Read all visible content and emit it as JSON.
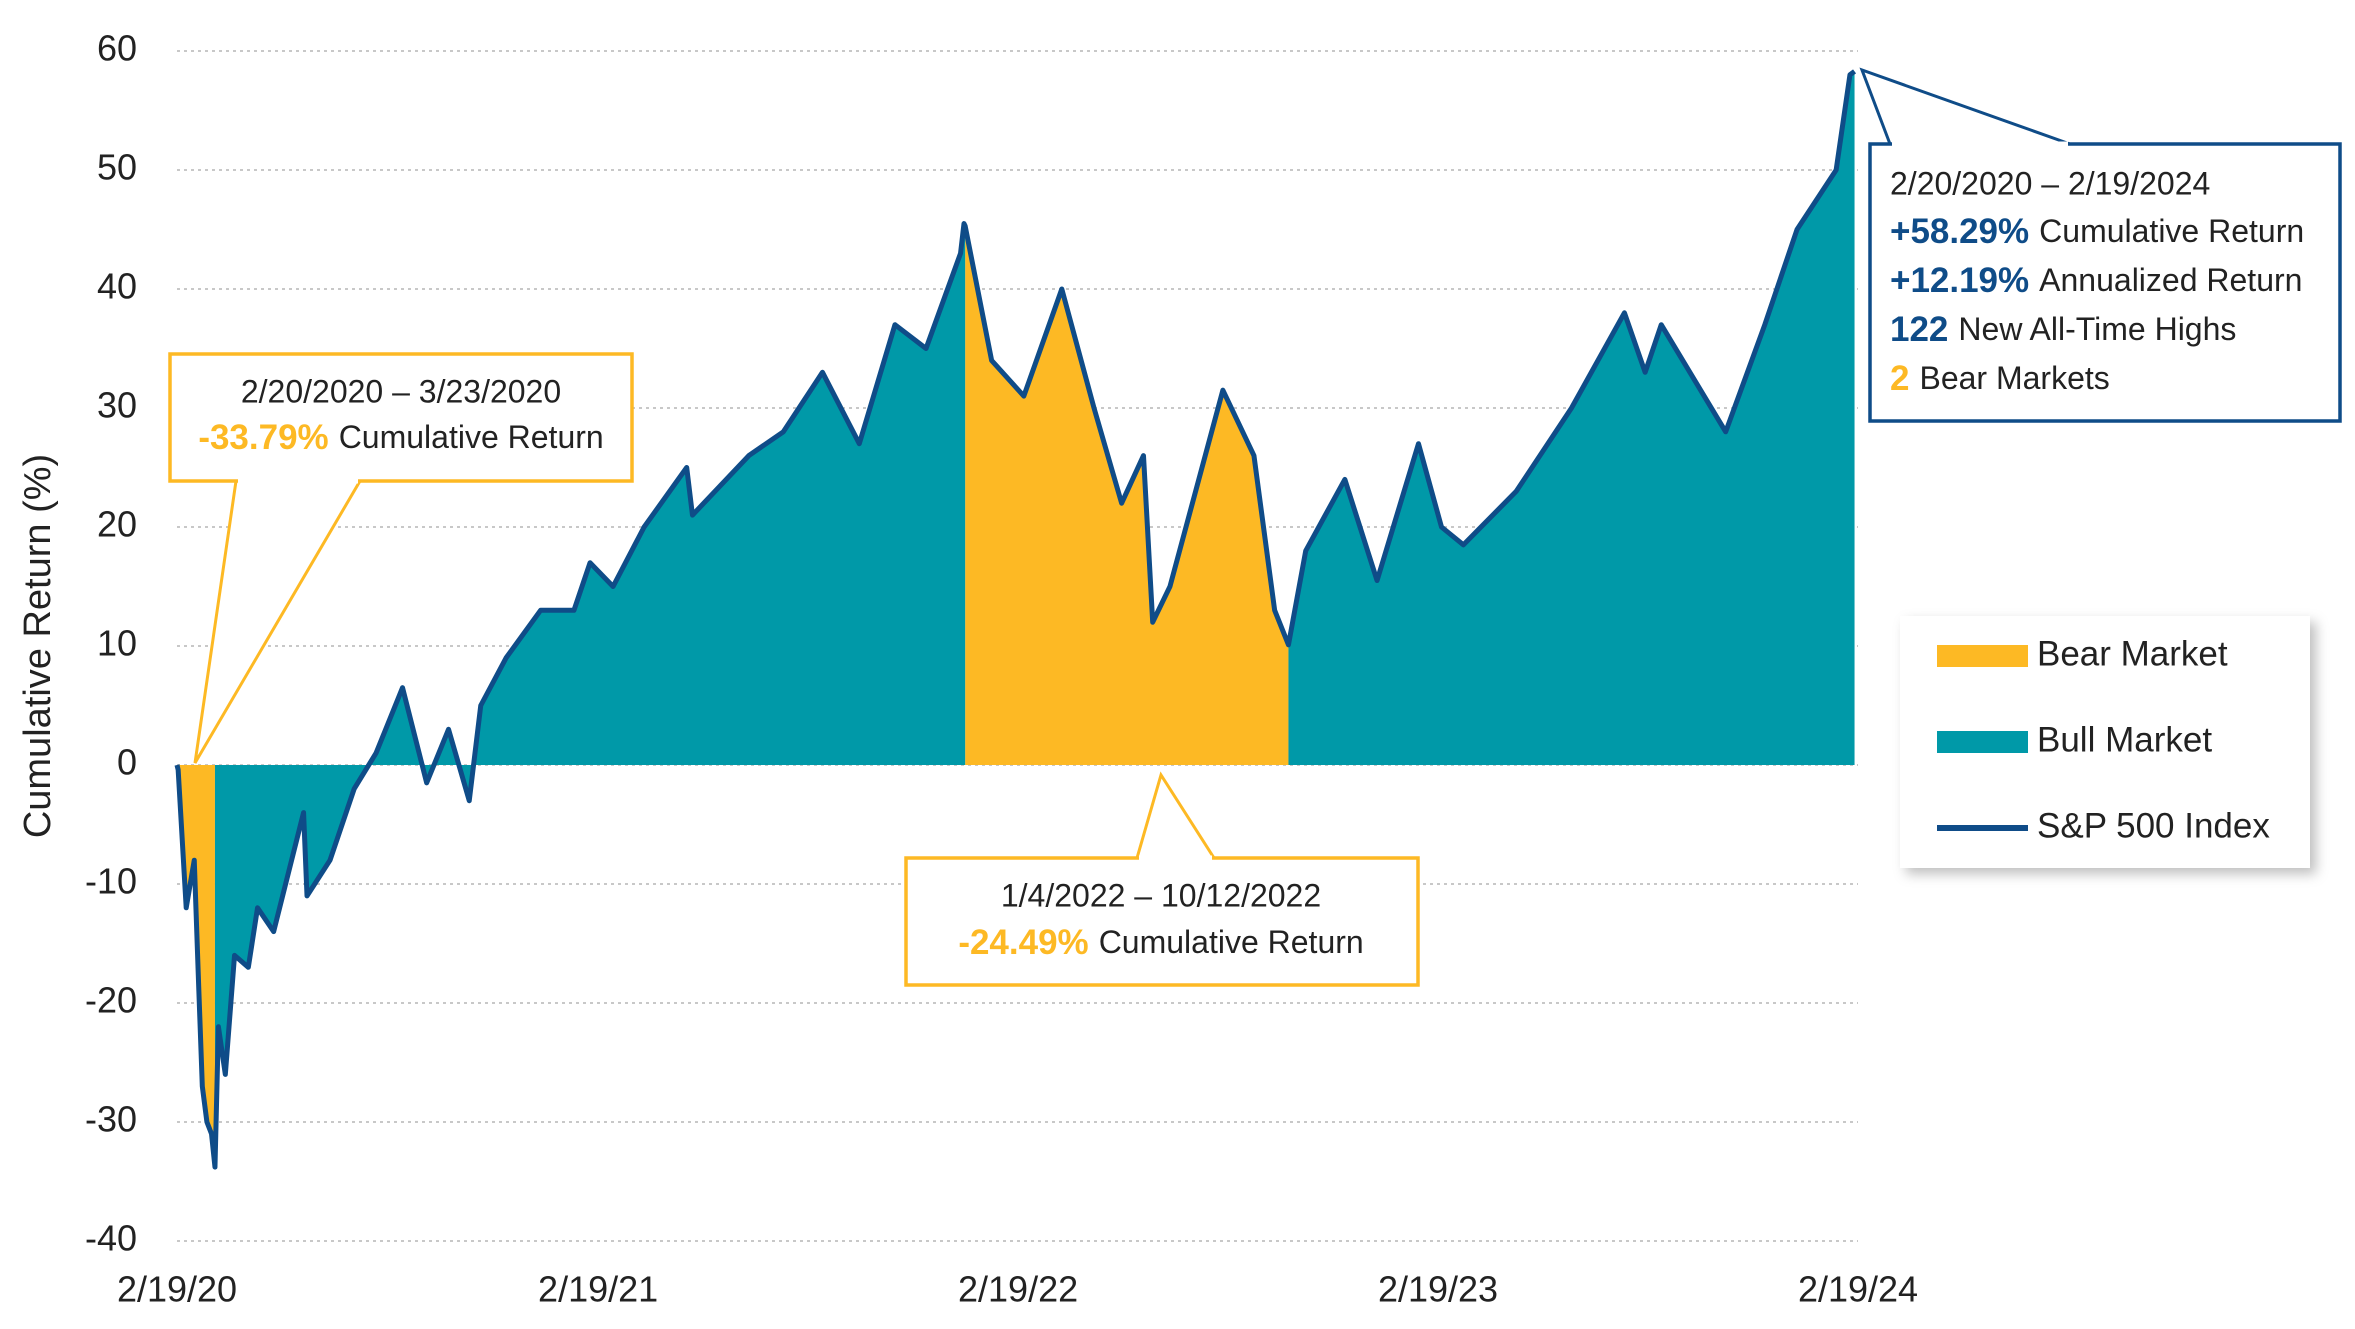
{
  "chart_data": {
    "type": "area",
    "y_label": "Cumulative Return (%)",
    "x": [
      "2020-02-19",
      "2020-02-20",
      "2020-02-27",
      "2020-03-05",
      "2020-03-09",
      "2020-03-12",
      "2020-03-16",
      "2020-03-20",
      "2020-03-23",
      "2020-03-26",
      "2020-04-01",
      "2020-04-09",
      "2020-04-21",
      "2020-04-29",
      "2020-05-13",
      "2020-06-08",
      "2020-06-11",
      "2020-07-01",
      "2020-07-22",
      "2020-08-10",
      "2020-09-02",
      "2020-09-23",
      "2020-10-12",
      "2020-10-30",
      "2020-11-09",
      "2020-12-01",
      "2020-12-31",
      "2021-01-29",
      "2021-02-12",
      "2021-03-04",
      "2021-03-31",
      "2021-05-07",
      "2021-05-12",
      "2021-06-30",
      "2021-07-30",
      "2021-09-02",
      "2021-10-04",
      "2021-11-04",
      "2021-12-01",
      "2021-12-31",
      "2022-01-03",
      "2022-01-04",
      "2022-01-27",
      "2022-02-24",
      "2022-03-29",
      "2022-04-26",
      "2022-05-20",
      "2022-06-08",
      "2022-06-16",
      "2022-07-01",
      "2022-08-16",
      "2022-09-12",
      "2022-09-30",
      "2022-10-12",
      "2022-10-27",
      "2022-11-30",
      "2022-12-28",
      "2023-02-02",
      "2023-02-22",
      "2023-03-13",
      "2023-04-28",
      "2023-06-15",
      "2023-07-31",
      "2023-08-18",
      "2023-09-01",
      "2023-10-27",
      "2023-11-30",
      "2023-12-28",
      "2024-01-31",
      "2024-02-12",
      "2024-02-16"
    ],
    "series": [
      {
        "name": "Bear Market",
        "color": "#fdb924",
        "kind": "area",
        "values": [
          null,
          -0.4,
          -12,
          -8,
          -19,
          -27,
          -30,
          -31,
          -33.79,
          null,
          null,
          null,
          null,
          null,
          null,
          null,
          null,
          null,
          null,
          null,
          null,
          null,
          null,
          null,
          null,
          null,
          null,
          null,
          null,
          null,
          null,
          null,
          null,
          null,
          null,
          null,
          null,
          null,
          null,
          null,
          null,
          45.3,
          34,
          31,
          40,
          30,
          22,
          26,
          12,
          15,
          31.5,
          26,
          13,
          10.1,
          null,
          null,
          null,
          null,
          null,
          null,
          null,
          null,
          null,
          null,
          null,
          null,
          null,
          null,
          null,
          null,
          null
        ]
      },
      {
        "name": "Bull Market",
        "color": "#0099a8",
        "kind": "area",
        "values": [
          null,
          null,
          null,
          null,
          null,
          null,
          null,
          null,
          -33.79,
          -22,
          -26,
          -16,
          -17,
          -12,
          -14,
          -4,
          -11,
          -8,
          -2,
          1,
          6.5,
          -1.5,
          3,
          -3,
          5,
          9,
          13,
          13,
          17,
          15,
          20,
          25,
          21,
          26,
          28,
          33,
          27,
          37,
          35,
          43,
          45.5,
          45.3,
          null,
          null,
          null,
          null,
          null,
          null,
          null,
          null,
          null,
          null,
          null,
          10.1,
          18,
          24,
          15.5,
          27,
          20,
          18.5,
          23,
          30,
          38,
          33,
          37,
          28,
          37,
          45,
          50,
          58,
          58.29
        ]
      },
      {
        "name": "S&P 500 Index",
        "color": "#0f4c88",
        "kind": "line",
        "values": [
          0,
          -0.4,
          -12,
          -8,
          -19,
          -27,
          -30,
          -31,
          -33.79,
          -22,
          -26,
          -16,
          -17,
          -12,
          -14,
          -4,
          -11,
          -8,
          -2,
          1,
          6.5,
          -1.5,
          3,
          -3,
          5,
          9,
          13,
          13,
          17,
          15,
          20,
          25,
          21,
          26,
          28,
          33,
          27,
          37,
          35,
          43,
          45.5,
          45.3,
          34,
          31,
          40,
          30,
          22,
          26,
          12,
          15,
          31.5,
          26,
          13,
          10.1,
          18,
          24,
          15.5,
          27,
          20,
          18.5,
          23,
          30,
          38,
          33,
          37,
          28,
          37,
          45,
          50,
          58,
          58.29
        ]
      }
    ],
    "xlim": [
      "2020-02-19",
      "2024-02-19"
    ],
    "xticks": [
      {
        "value": "2020-02-19",
        "label": "2/19/20"
      },
      {
        "value": "2021-02-19",
        "label": "2/19/21"
      },
      {
        "value": "2022-02-19",
        "label": "2/19/22"
      },
      {
        "value": "2023-02-19",
        "label": "2/19/23"
      },
      {
        "value": "2024-02-19",
        "label": "2/19/24"
      }
    ],
    "ylim": [
      -40,
      60
    ],
    "yticks": [
      -40,
      -30,
      -20,
      -10,
      0,
      10,
      20,
      30,
      40,
      50,
      60
    ],
    "grid": true,
    "legend": "right",
    "annotations": [
      {
        "title": "2/20/2020 – 3/23/2020",
        "value": "-33.79%",
        "text": "Cumulative Return",
        "color": "#fdb924"
      },
      {
        "title": "1/4/2022 – 10/12/2022",
        "value": "-24.49%",
        "text": "Cumulative Return",
        "color": "#fdb924"
      }
    ],
    "summary": {
      "title": "2/20/2020 – 2/19/2024",
      "color": "#0f4c88",
      "rows": [
        {
          "value": "+58.29%",
          "text": "Cumulative Return",
          "color": "#0f4c88"
        },
        {
          "value": "+12.19%",
          "text": "Annualized Return",
          "color": "#0f4c88"
        },
        {
          "value": "122",
          "text": "New All-Time Highs",
          "color": "#0f4c88"
        },
        {
          "value": "2",
          "text": "Bear Markets",
          "color": "#fdb924"
        }
      ]
    }
  }
}
